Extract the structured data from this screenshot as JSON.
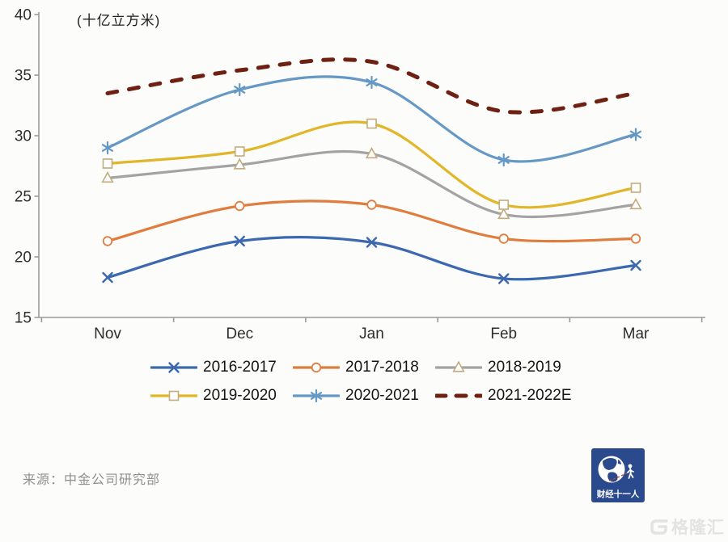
{
  "chart_data": {
    "type": "line",
    "ylabel": "(十亿立方米)",
    "categories": [
      "Nov",
      "Dec",
      "Jan",
      "Feb",
      "Mar"
    ],
    "ylim": [
      15,
      40
    ],
    "yticks": [
      15,
      20,
      25,
      30,
      35,
      40
    ],
    "grid": false,
    "legend_position": "bottom",
    "marker_outline": "#c2ab7d",
    "series": [
      {
        "name": "2016-2017",
        "values": [
          18.3,
          21.3,
          21.2,
          18.2,
          19.3
        ],
        "color": "#3c68b0",
        "marker": "x",
        "style": "solid"
      },
      {
        "name": "2017-2018",
        "values": [
          21.3,
          24.2,
          24.3,
          21.5,
          21.5
        ],
        "color": "#e07d3e",
        "marker": "circle",
        "style": "solid"
      },
      {
        "name": "2018-2019",
        "values": [
          26.5,
          27.6,
          28.5,
          23.5,
          24.3
        ],
        "color": "#a3a3a3",
        "marker": "triangle",
        "style": "solid"
      },
      {
        "name": "2019-2020",
        "values": [
          27.7,
          28.7,
          31.0,
          24.3,
          25.7
        ],
        "color": "#e2b629",
        "marker": "square",
        "style": "solid"
      },
      {
        "name": "2020-2021",
        "values": [
          29.0,
          33.8,
          34.4,
          28.0,
          30.1
        ],
        "color": "#6598c4",
        "marker": "asterisk",
        "style": "solid"
      },
      {
        "name": "2021-2022E",
        "values": [
          33.5,
          35.4,
          36.1,
          32.0,
          33.5
        ],
        "color": "#6e2112",
        "marker": "none",
        "style": "dashed"
      }
    ]
  },
  "footer": {
    "source": "来源：中金公司研究部"
  },
  "branding": {
    "logo_text": "财经十一人",
    "watermark": "格隆汇"
  }
}
